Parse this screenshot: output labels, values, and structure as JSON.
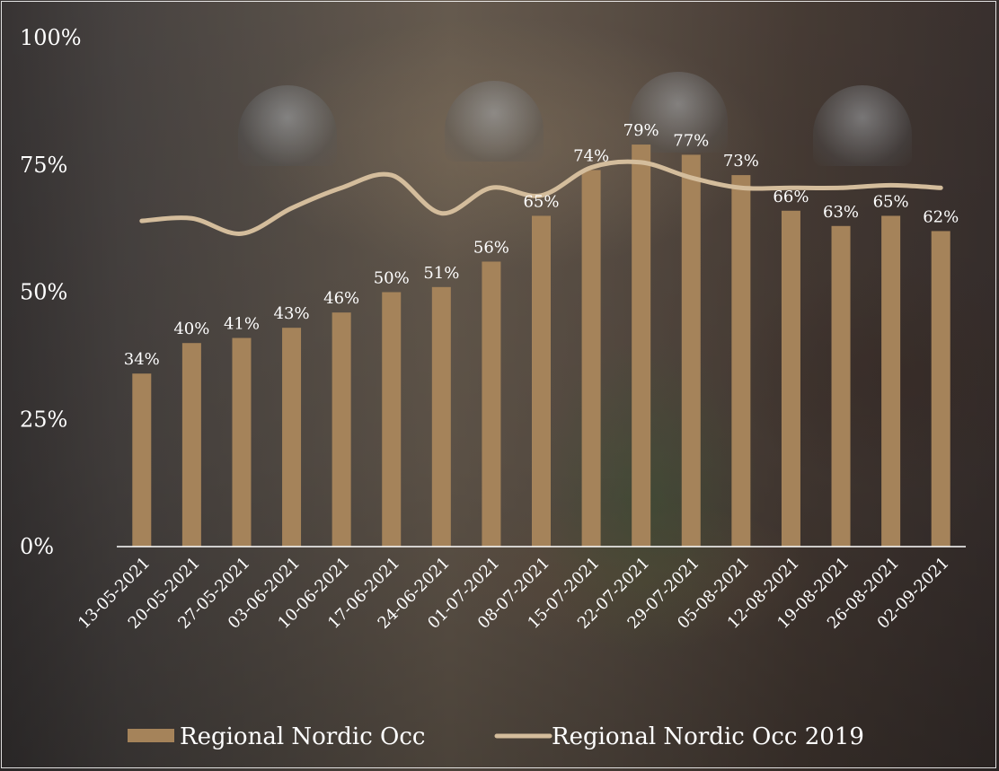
{
  "chart_data": {
    "type": "bar",
    "categories": [
      "13-05-2021",
      "20-05-2021",
      "27-05-2021",
      "03-06-2021",
      "10-06-2021",
      "17-06-2021",
      "24-06-2021",
      "01-07-2021",
      "08-07-2021",
      "15-07-2021",
      "22-07-2021",
      "29-07-2021",
      "05-08-2021",
      "12-08-2021",
      "19-08-2021",
      "26-08-2021",
      "02-09-2021"
    ],
    "series": [
      {
        "name": "Regional Nordic Occ",
        "type": "bar",
        "values": [
          34,
          40,
          41,
          43,
          46,
          50,
          51,
          56,
          65,
          74,
          79,
          77,
          73,
          66,
          63,
          65,
          62
        ],
        "labels": [
          "34%",
          "40%",
          "41%",
          "43%",
          "46%",
          "50%",
          "51%",
          "56%",
          "65%",
          "74%",
          "79%",
          "77%",
          "73%",
          "66%",
          "63%",
          "65%",
          "62%"
        ],
        "color": "#a5835a"
      },
      {
        "name": "Regional Nordic Occ 2019",
        "type": "line",
        "values": [
          64,
          64.5,
          61.5,
          66.5,
          70.5,
          73,
          65.5,
          70.5,
          69,
          74.5,
          75.5,
          72.5,
          70.5,
          70.5,
          70.5,
          71,
          70.5
        ],
        "color": "#d4bd9c"
      }
    ],
    "yticks": [
      "0%",
      "25%",
      "50%",
      "75%",
      "100%"
    ],
    "ytick_values": [
      0,
      25,
      50,
      75,
      100
    ],
    "ylim": [
      0,
      100
    ],
    "grid": false,
    "legend": "bottom"
  }
}
